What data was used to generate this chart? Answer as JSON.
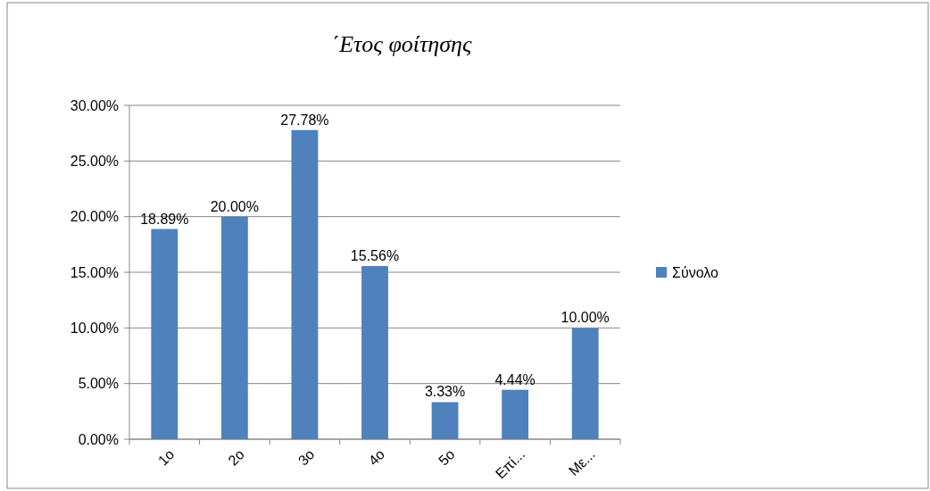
{
  "chart_data": {
    "type": "bar",
    "title": "΄Ετος φοίτησης",
    "categories": [
      "1ο",
      "2ο",
      "3ο",
      "4ο",
      "5ο",
      "Επί...",
      "Με..."
    ],
    "series": [
      {
        "name": "Σύνολο",
        "color": "#4f81bd",
        "values": [
          18.89,
          20.0,
          27.78,
          15.56,
          3.33,
          4.44,
          10.0
        ],
        "value_labels": [
          "18.89%",
          "20.00%",
          "27.78%",
          "15.56%",
          "3.33%",
          "4.44%",
          "10.00%"
        ]
      }
    ],
    "ylim": [
      0,
      30
    ],
    "yticks": [
      {
        "value": 0,
        "label": "0.00%"
      },
      {
        "value": 5,
        "label": "5.00%"
      },
      {
        "value": 10,
        "label": "10.00%"
      },
      {
        "value": 15,
        "label": "15.00%"
      },
      {
        "value": 20,
        "label": "20.00%"
      },
      {
        "value": 25,
        "label": "25.00%"
      },
      {
        "value": 30,
        "label": "30.00%"
      }
    ],
    "grid": "y",
    "legend": "right"
  }
}
